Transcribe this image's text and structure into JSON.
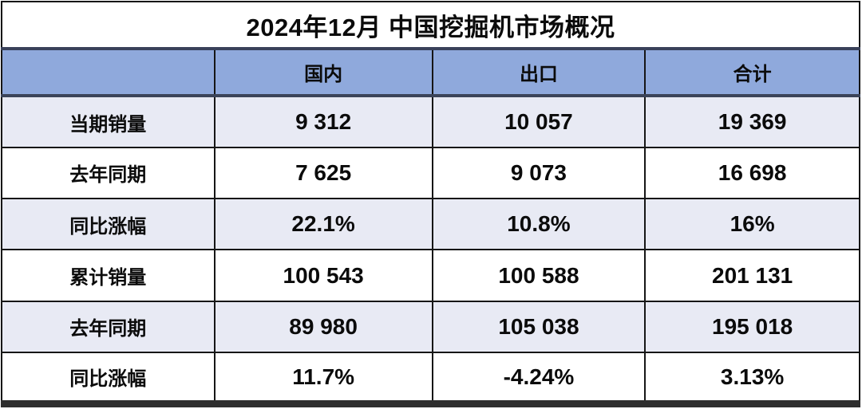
{
  "chart_data": {
    "type": "table",
    "title": "2024年12月 中国挖掘机市场概况",
    "columns": [
      "",
      "国内",
      "出口",
      "合计"
    ],
    "rows": [
      [
        "当期销量",
        "9 312",
        "10 057",
        "19 369"
      ],
      [
        "去年同期",
        "7 625",
        "9 073",
        "16 698"
      ],
      [
        "同比涨幅",
        "22.1%",
        "10.8%",
        "16%"
      ],
      [
        "累计销量",
        "100 543",
        "100 588",
        "201 131"
      ],
      [
        "去年同期",
        "89 980",
        "105 038",
        "195 018"
      ],
      [
        "同比涨幅",
        "11.7%",
        "-4.24%",
        "3.13%"
      ]
    ],
    "layout_hints": {
      "banded_rows": "odd rows tinted lavender, even rows white",
      "header_position": "top, below title band"
    }
  },
  "colors": {
    "header_bg": "#8FA9DC",
    "band_row_bg": "#E8EAF4",
    "grid_border": "#161616",
    "header_divider": "#3b4459",
    "bottom_border": "#2e2e2e",
    "text": "#0b0b0b",
    "title_bg": "#ffffff"
  }
}
